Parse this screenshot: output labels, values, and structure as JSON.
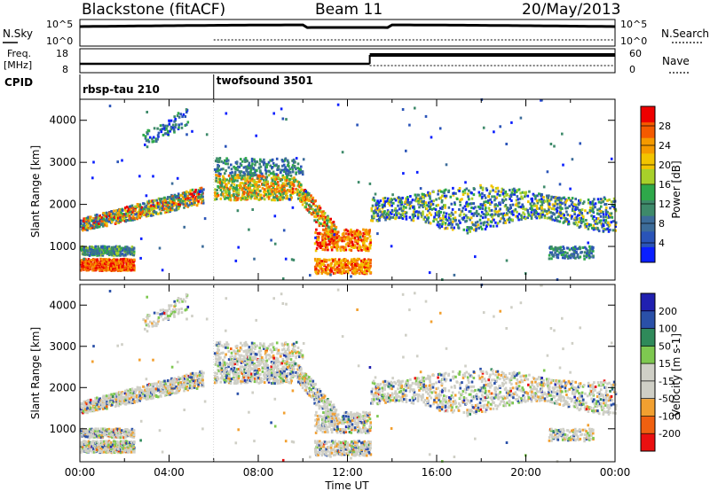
{
  "header": {
    "station": "Blackstone (fitACF)",
    "beam": "Beam 11",
    "date": "20/May/2013"
  },
  "top_labels": {
    "nsky": "N.Sky",
    "freq_line1": "Freq.",
    "freq_line2": "[MHz]",
    "cpid": "CPID",
    "nsearch": "N.Search",
    "nave": "Nave",
    "nsky_ticks": [
      "10^5",
      "10^0"
    ],
    "nsearch_ticks": [
      "10^5",
      "10^0"
    ],
    "freq_ticks": [
      "18",
      "8"
    ],
    "nave_ticks": [
      "60",
      "0"
    ]
  },
  "cpid_segments": [
    {
      "label": "rbsp-tau 210",
      "start_hour": 0
    },
    {
      "label": "twofsound 3501",
      "start_hour": 6
    }
  ],
  "colors": {
    "power_scale": [
      "#0a1fff",
      "#2a54b8",
      "#3c6c9a",
      "#3e8a6a",
      "#2ea84a",
      "#a8d02a",
      "#f2c400",
      "#f59a00",
      "#f45a00",
      "#ee0000"
    ],
    "velocity_scale": [
      "#2020b0",
      "#2a50a8",
      "#2f8a5a",
      "#7ec850",
      "#cfcfc6",
      "#cfcfc6",
      "#f2a030",
      "#f06010",
      "#ea1010"
    ]
  },
  "chart_data": [
    {
      "type": "heatmap",
      "name": "power",
      "ylabel": "Slant Range [km]",
      "xlabel": "",
      "colorbar_label": "Power [dB]",
      "colorbar_ticks": [
        "28",
        "24",
        "20",
        "16",
        "12",
        "8",
        "4"
      ],
      "yticks": [
        "4000",
        "3000",
        "2000",
        "1000"
      ],
      "ylim": [
        200,
        4500
      ],
      "xlim": [
        0,
        24
      ]
    },
    {
      "type": "heatmap",
      "name": "velocity",
      "ylabel": "Slant Range [km]",
      "xlabel": "Time UT",
      "colorbar_label": "Velocity [m s-1]",
      "colorbar_ticks": [
        "200",
        "100",
        "50",
        "15",
        "-15",
        "-50",
        "-100",
        "-200"
      ],
      "yticks": [
        "4000",
        "3000",
        "2000",
        "1000"
      ],
      "xticks": [
        "00:00",
        "04:00",
        "08:00",
        "12:00",
        "16:00",
        "20:00",
        "00:00"
      ],
      "ylim": [
        200,
        4500
      ],
      "xlim": [
        0,
        24
      ]
    }
  ]
}
